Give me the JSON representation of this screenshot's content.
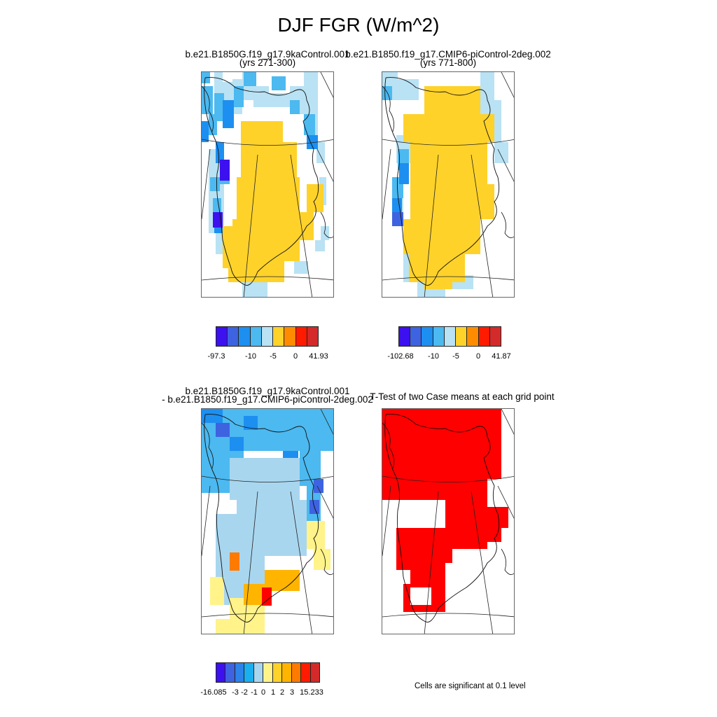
{
  "title": "DJF FGR (W/m^2)",
  "panels": {
    "p1": {
      "line1": "b.e21.B1850G.f19_g17.9kaControl.001",
      "line2": "(yrs 271-300)"
    },
    "p2": {
      "line1": "b.e21.B1850.f19_g17.CMIP6-piControl-2deg.002",
      "line2": "(yrs 771-800)"
    },
    "p3": {
      "line1": "b.e21.B1850G.f19_g17.9kaControl.001",
      "line2": "- b.e21.B1850.f19_g17.CMIP6-piControl-2deg.002"
    },
    "p4": {
      "line1": "T-Test of two Case means at each grid point"
    }
  },
  "colorbars": {
    "cb1": {
      "colors": [
        "#3d10f0",
        "#3e63e0",
        "#1d8ff0",
        "#4cb9f0",
        "#b9e2f4",
        "#ffd22a",
        "#ff8c00",
        "#ff1a00",
        "#d42a2a"
      ],
      "labels": [
        "-97.3",
        "-10",
        "-5",
        "0",
        "41.93"
      ]
    },
    "cb2": {
      "colors": [
        "#3d10f0",
        "#3e63e0",
        "#1d8ff0",
        "#4cb9f0",
        "#b9e2f4",
        "#ffd22a",
        "#ff8c00",
        "#ff1a00",
        "#d42a2a"
      ],
      "labels": [
        "-102.68",
        "-10",
        "-5",
        "0",
        "41.87"
      ]
    },
    "cb3": {
      "colors": [
        "#3d10f0",
        "#3e63e0",
        "#2c83ea",
        "#1ab0f0",
        "#a9d6ef",
        "#fff38a",
        "#ffd22a",
        "#ffb400",
        "#ff7a00",
        "#ff1a00",
        "#d42a2a"
      ],
      "labels": [
        "-16.085",
        "-3",
        "-2",
        "-1",
        "0",
        "1",
        "2",
        "3",
        "15.233"
      ]
    }
  },
  "significance_note": "Cells are significant at 0.1 level",
  "field_colors": {
    "yellow": "#ffd22a",
    "light_blue": "#b9e2f4",
    "mid_blue": "#4cb9f0",
    "blue": "#1d8ff0",
    "dark_blue": "#3e63e0",
    "violet": "#3d10f0",
    "diff_light_blue": "#a9d6ef",
    "diff_pale_yellow": "#fff38a",
    "diff_orange": "#ffb400",
    "diff_dark_orange": "#ff7a00",
    "sig_red": "#ff0000"
  }
}
